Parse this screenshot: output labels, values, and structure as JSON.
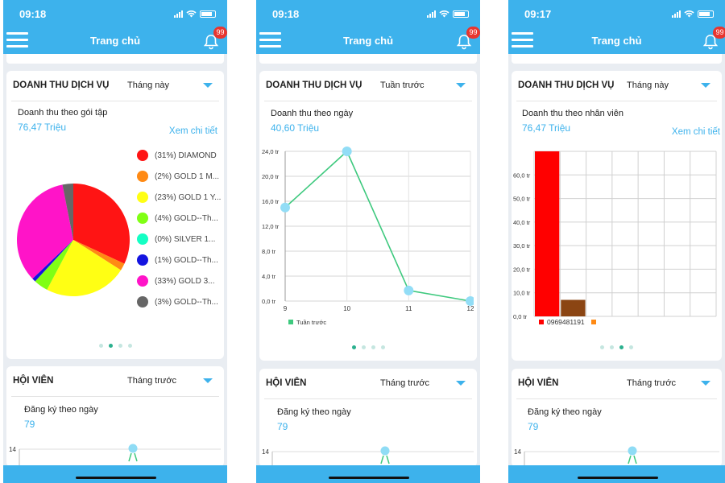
{
  "nav_title": "Trang chủ",
  "badge_count": "99",
  "colors": {
    "accent": "#3db2ec",
    "badge": "#e8352f",
    "line": "#3ec97e"
  },
  "screens": [
    {
      "time": "09:18",
      "revenue": {
        "title": "DOANH THU DỊCH VỤ",
        "period": "Tháng này",
        "subtitle": "Doanh thu theo gói tập",
        "value": "76,47 Triệu",
        "detail_link": "Xem chi tiết",
        "legend": [
          {
            "label": "(31%) DIAMOND",
            "color": "#ff1414"
          },
          {
            "label": "(2%) GOLD 1 M...",
            "color": "#ff8a14"
          },
          {
            "label": "(23%) GOLD 1 Y...",
            "color": "#ffff14"
          },
          {
            "label": "(4%) GOLD--Th...",
            "color": "#80ff14"
          },
          {
            "label": "(0%) SILVER 1...",
            "color": "#14ffc4"
          },
          {
            "label": "(1%) GOLD--Th...",
            "color": "#1414e0"
          },
          {
            "label": "(33%) GOLD 3...",
            "color": "#ff14c8"
          },
          {
            "label": "(3%) GOLD--Th...",
            "color": "#666666"
          }
        ]
      },
      "member": {
        "title": "HỘI VIÊN",
        "period": "Tháng trước",
        "subtitle": "Đăng ký theo ngày",
        "value": "79",
        "y_tick": "14"
      }
    },
    {
      "time": "09:18",
      "revenue": {
        "title": "DOANH THU DỊCH VỤ",
        "period": "Tuần trước",
        "subtitle": "Doanh thu theo ngày",
        "value": "40,60 Triệu",
        "legend_label": "Tuần trước"
      },
      "member": {
        "title": "HỘI VIÊN",
        "period": "Tháng trước",
        "subtitle": "Đăng ký theo ngày",
        "value": "79",
        "y_tick": "14"
      }
    },
    {
      "time": "09:17",
      "revenue": {
        "title": "DOANH THU DỊCH VỤ",
        "period": "Tháng này",
        "subtitle": "Doanh thu theo nhân viên",
        "value": "76,47 Triệu",
        "detail_link": "Xem chi tiết",
        "legend_label": "0969481191"
      },
      "member": {
        "title": "HỘI VIÊN",
        "period": "Tháng trước",
        "subtitle": "Đăng ký theo ngày",
        "value": "79",
        "y_tick": "14"
      }
    }
  ],
  "chart_data": [
    {
      "type": "pie",
      "categories": [
        "DIAMOND",
        "GOLD 1 M...",
        "GOLD 1 Y...",
        "GOLD--Th...",
        "SILVER 1...",
        "GOLD--Th...",
        "GOLD 3...",
        "GOLD--Th..."
      ],
      "values": [
        31,
        2,
        23,
        4,
        0,
        1,
        33,
        3
      ],
      "colors": [
        "#ff1414",
        "#ff8a14",
        "#ffff14",
        "#80ff14",
        "#14ffc4",
        "#1414e0",
        "#ff14c8",
        "#666666"
      ]
    },
    {
      "type": "line",
      "x": [
        9,
        10,
        11,
        12
      ],
      "series": [
        {
          "name": "Tuần trước",
          "values": [
            15.0,
            24.0,
            1.7,
            0.0
          ]
        }
      ],
      "ylim": [
        0,
        24
      ],
      "y_ticks": [
        "0,0 tr",
        "4,0 tr",
        "8,0 tr",
        "12,0 tr",
        "16,0 tr",
        "20,0 tr",
        "24,0 tr"
      ],
      "x_ticks": [
        "9",
        "10",
        "11",
        "12"
      ],
      "grid": true,
      "legend": "bottom-left"
    },
    {
      "type": "bar",
      "categories": [
        "0969481191",
        ""
      ],
      "values": [
        70,
        7
      ],
      "colors": [
        "#ff0000",
        "#8b4513"
      ],
      "legend_colors": [
        "#ff0000",
        "#ff8a14"
      ],
      "ylim": [
        0,
        70
      ],
      "y_ticks": [
        "0,0 tr",
        "10,0 tr",
        "20,0 tr",
        "30,0 tr",
        "40,0 tr",
        "50,0 tr",
        "60,0 tr"
      ],
      "grid": true
    }
  ]
}
